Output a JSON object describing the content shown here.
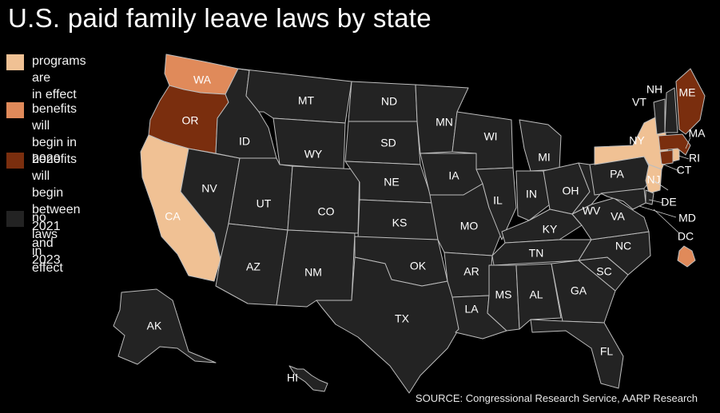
{
  "title": "U.S. paid family leave laws by state",
  "colors": {
    "programs_in_effect": "#f0c194",
    "benefits_2020": "#e08a5a",
    "benefits_2021_2023": "#7a2e0e",
    "no_laws": "#232323",
    "border": "#bdbdbd",
    "background": "#000000"
  },
  "legend": [
    {
      "key": "programs_in_effect",
      "label": "programs are\nin effect"
    },
    {
      "key": "benefits_2020",
      "label": "benefits will\nbegin in 2020"
    },
    {
      "key": "benefits_2021_2023",
      "label": "benefits will\nbegin between\n2021 and 2023"
    },
    {
      "key": "no_laws",
      "label": "no laws in effect"
    }
  ],
  "states": [
    {
      "abbr": "WA",
      "status": "benefits_2020"
    },
    {
      "abbr": "OR",
      "status": "benefits_2021_2023"
    },
    {
      "abbr": "CA",
      "status": "programs_in_effect"
    },
    {
      "abbr": "NV",
      "status": "no_laws"
    },
    {
      "abbr": "ID",
      "status": "no_laws"
    },
    {
      "abbr": "MT",
      "status": "no_laws"
    },
    {
      "abbr": "WY",
      "status": "no_laws"
    },
    {
      "abbr": "UT",
      "status": "no_laws"
    },
    {
      "abbr": "AZ",
      "status": "no_laws"
    },
    {
      "abbr": "CO",
      "status": "no_laws"
    },
    {
      "abbr": "NM",
      "status": "no_laws"
    },
    {
      "abbr": "ND",
      "status": "no_laws"
    },
    {
      "abbr": "SD",
      "status": "no_laws"
    },
    {
      "abbr": "NE",
      "status": "no_laws"
    },
    {
      "abbr": "KS",
      "status": "no_laws"
    },
    {
      "abbr": "OK",
      "status": "no_laws"
    },
    {
      "abbr": "TX",
      "status": "no_laws"
    },
    {
      "abbr": "MN",
      "status": "no_laws"
    },
    {
      "abbr": "IA",
      "status": "no_laws"
    },
    {
      "abbr": "MO",
      "status": "no_laws"
    },
    {
      "abbr": "AR",
      "status": "no_laws"
    },
    {
      "abbr": "LA",
      "status": "no_laws"
    },
    {
      "abbr": "WI",
      "status": "no_laws"
    },
    {
      "abbr": "IL",
      "status": "no_laws"
    },
    {
      "abbr": "MI",
      "status": "no_laws"
    },
    {
      "abbr": "IN",
      "status": "no_laws"
    },
    {
      "abbr": "OH",
      "status": "no_laws"
    },
    {
      "abbr": "KY",
      "status": "no_laws"
    },
    {
      "abbr": "TN",
      "status": "no_laws"
    },
    {
      "abbr": "MS",
      "status": "no_laws"
    },
    {
      "abbr": "AL",
      "status": "no_laws"
    },
    {
      "abbr": "GA",
      "status": "no_laws"
    },
    {
      "abbr": "FL",
      "status": "no_laws"
    },
    {
      "abbr": "SC",
      "status": "no_laws"
    },
    {
      "abbr": "NC",
      "status": "no_laws"
    },
    {
      "abbr": "VA",
      "status": "no_laws"
    },
    {
      "abbr": "WV",
      "status": "no_laws"
    },
    {
      "abbr": "PA",
      "status": "no_laws"
    },
    {
      "abbr": "NY",
      "status": "programs_in_effect"
    },
    {
      "abbr": "NJ",
      "status": "programs_in_effect"
    },
    {
      "abbr": "DE",
      "status": "no_laws"
    },
    {
      "abbr": "MD",
      "status": "no_laws"
    },
    {
      "abbr": "DC",
      "status": "benefits_2020"
    },
    {
      "abbr": "CT",
      "status": "benefits_2021_2023"
    },
    {
      "abbr": "RI",
      "status": "programs_in_effect"
    },
    {
      "abbr": "MA",
      "status": "benefits_2021_2023"
    },
    {
      "abbr": "VT",
      "status": "no_laws"
    },
    {
      "abbr": "NH",
      "status": "no_laws"
    },
    {
      "abbr": "ME",
      "status": "benefits_2021_2023"
    },
    {
      "abbr": "AK",
      "status": "no_laws"
    },
    {
      "abbr": "HI",
      "status": "no_laws"
    }
  ],
  "source": "SOURCE: Congressional Research Service, AARP Research"
}
